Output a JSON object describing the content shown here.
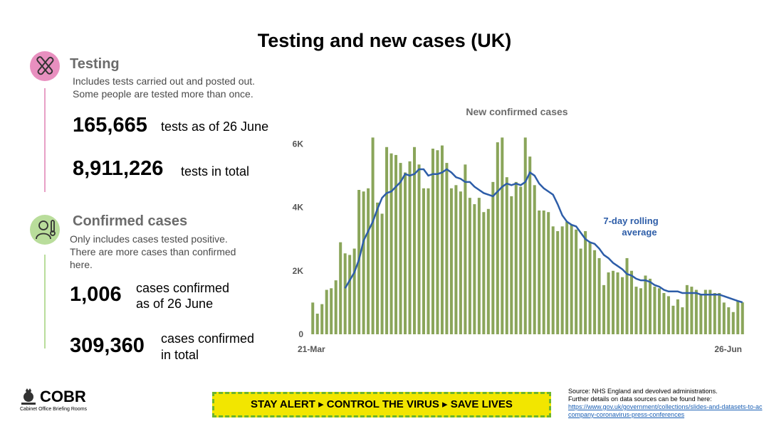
{
  "title": "Testing and new cases (UK)",
  "testing": {
    "heading": "Testing",
    "desc1": "Includes tests carried out and posted out.",
    "desc2": "Some people are tested more than once.",
    "stat1_value": "165,665",
    "stat1_label": "tests as of 26 June",
    "stat2_value": "8,911,226",
    "stat2_label": "tests in total"
  },
  "cases": {
    "heading": "Confirmed cases",
    "desc1": "Only includes cases tested positive.",
    "desc2": "There are more cases than confirmed",
    "desc3": "here.",
    "stat1_value": "1,006",
    "stat1_label1": "cases confirmed",
    "stat1_label2": "as of 26 June",
    "stat2_value": "309,360",
    "stat2_label1": "cases confirmed",
    "stat2_label2": "in total"
  },
  "footer": {
    "logo_text": "COBR",
    "logo_sub": "Cabinet Office Briefing Rooms",
    "banner": "STAY ALERT ▸ CONTROL THE VIRUS ▸ SAVE LIVES",
    "source1": "Source: NHS England and devolved administrations.",
    "source2": "Further details on data sources can be found here:",
    "source_link": "https://www.gov.uk/government/collections/slides-and-datasets-to-accompany-coronavirus-press-conferences"
  },
  "colors": {
    "bar": "#8aa55a",
    "line": "#2d5da8",
    "testing_icon": "#e88fbf",
    "cases_icon": "#b9dd9b"
  },
  "chart_data": {
    "type": "bar",
    "title": "New confirmed cases",
    "x_start_label": "21-Mar",
    "x_end_label": "26-Jun",
    "ylim": [
      0,
      6500
    ],
    "yticks": [
      0,
      2000,
      4000,
      6000
    ],
    "ytick_labels": [
      "0",
      "2K",
      "4K",
      "6K"
    ],
    "line_label_1": "7-day rolling",
    "line_label_2": "average",
    "series": [
      {
        "name": "New confirmed cases",
        "values": [
          1000,
          650,
          950,
          1400,
          1450,
          1700,
          2900,
          2550,
          2500,
          2700,
          4550,
          4500,
          4600,
          6200,
          4150,
          3800,
          5900,
          5700,
          5650,
          5400,
          5100,
          5450,
          5900,
          5350,
          4600,
          4600,
          5850,
          5800,
          5950,
          5400,
          4600,
          4700,
          4500,
          5350,
          4300,
          4100,
          4300,
          3850,
          3950,
          4800,
          6050,
          6200,
          4950,
          4350,
          4800,
          4650,
          6200,
          5600,
          4700,
          3900,
          3900,
          3850,
          3400,
          3250,
          3400,
          3550,
          3450,
          3300,
          2700,
          3250,
          2900,
          2650,
          2400,
          1550,
          1950,
          2000,
          1950,
          1800,
          2400,
          2000,
          1500,
          1450,
          1850,
          1750,
          1500,
          1450,
          1300,
          1200,
          900,
          1100,
          850,
          1550,
          1500,
          1400,
          1250,
          1400,
          1400,
          1300,
          1300,
          1000,
          850,
          700,
          1050,
          1006
        ]
      },
      {
        "name": "7-day rolling average",
        "values": [
          null,
          null,
          null,
          null,
          null,
          null,
          null,
          1450,
          1700,
          1950,
          2350,
          2950,
          3250,
          3550,
          3950,
          4300,
          4450,
          4500,
          4650,
          4800,
          5050,
          5000,
          5050,
          5200,
          5200,
          5000,
          5050,
          5050,
          5100,
          5200,
          5100,
          4950,
          4900,
          4800,
          4800,
          4650,
          4550,
          4450,
          4400,
          4350,
          4500,
          4650,
          4750,
          4700,
          4750,
          4700,
          4800,
          5100,
          5000,
          4750,
          4600,
          4500,
          4400,
          4100,
          3750,
          3550,
          3450,
          3400,
          3200,
          3000,
          2900,
          2850,
          2700,
          2500,
          2400,
          2250,
          2150,
          2050,
          1900,
          1850,
          1750,
          1700,
          1700,
          1650,
          1550,
          1500,
          1400,
          1350,
          1350,
          1350,
          1300,
          1300,
          1300,
          1300,
          1250,
          1250,
          1250,
          1250,
          1250,
          1200,
          1150,
          1100,
          1050,
          1006
        ]
      }
    ]
  }
}
